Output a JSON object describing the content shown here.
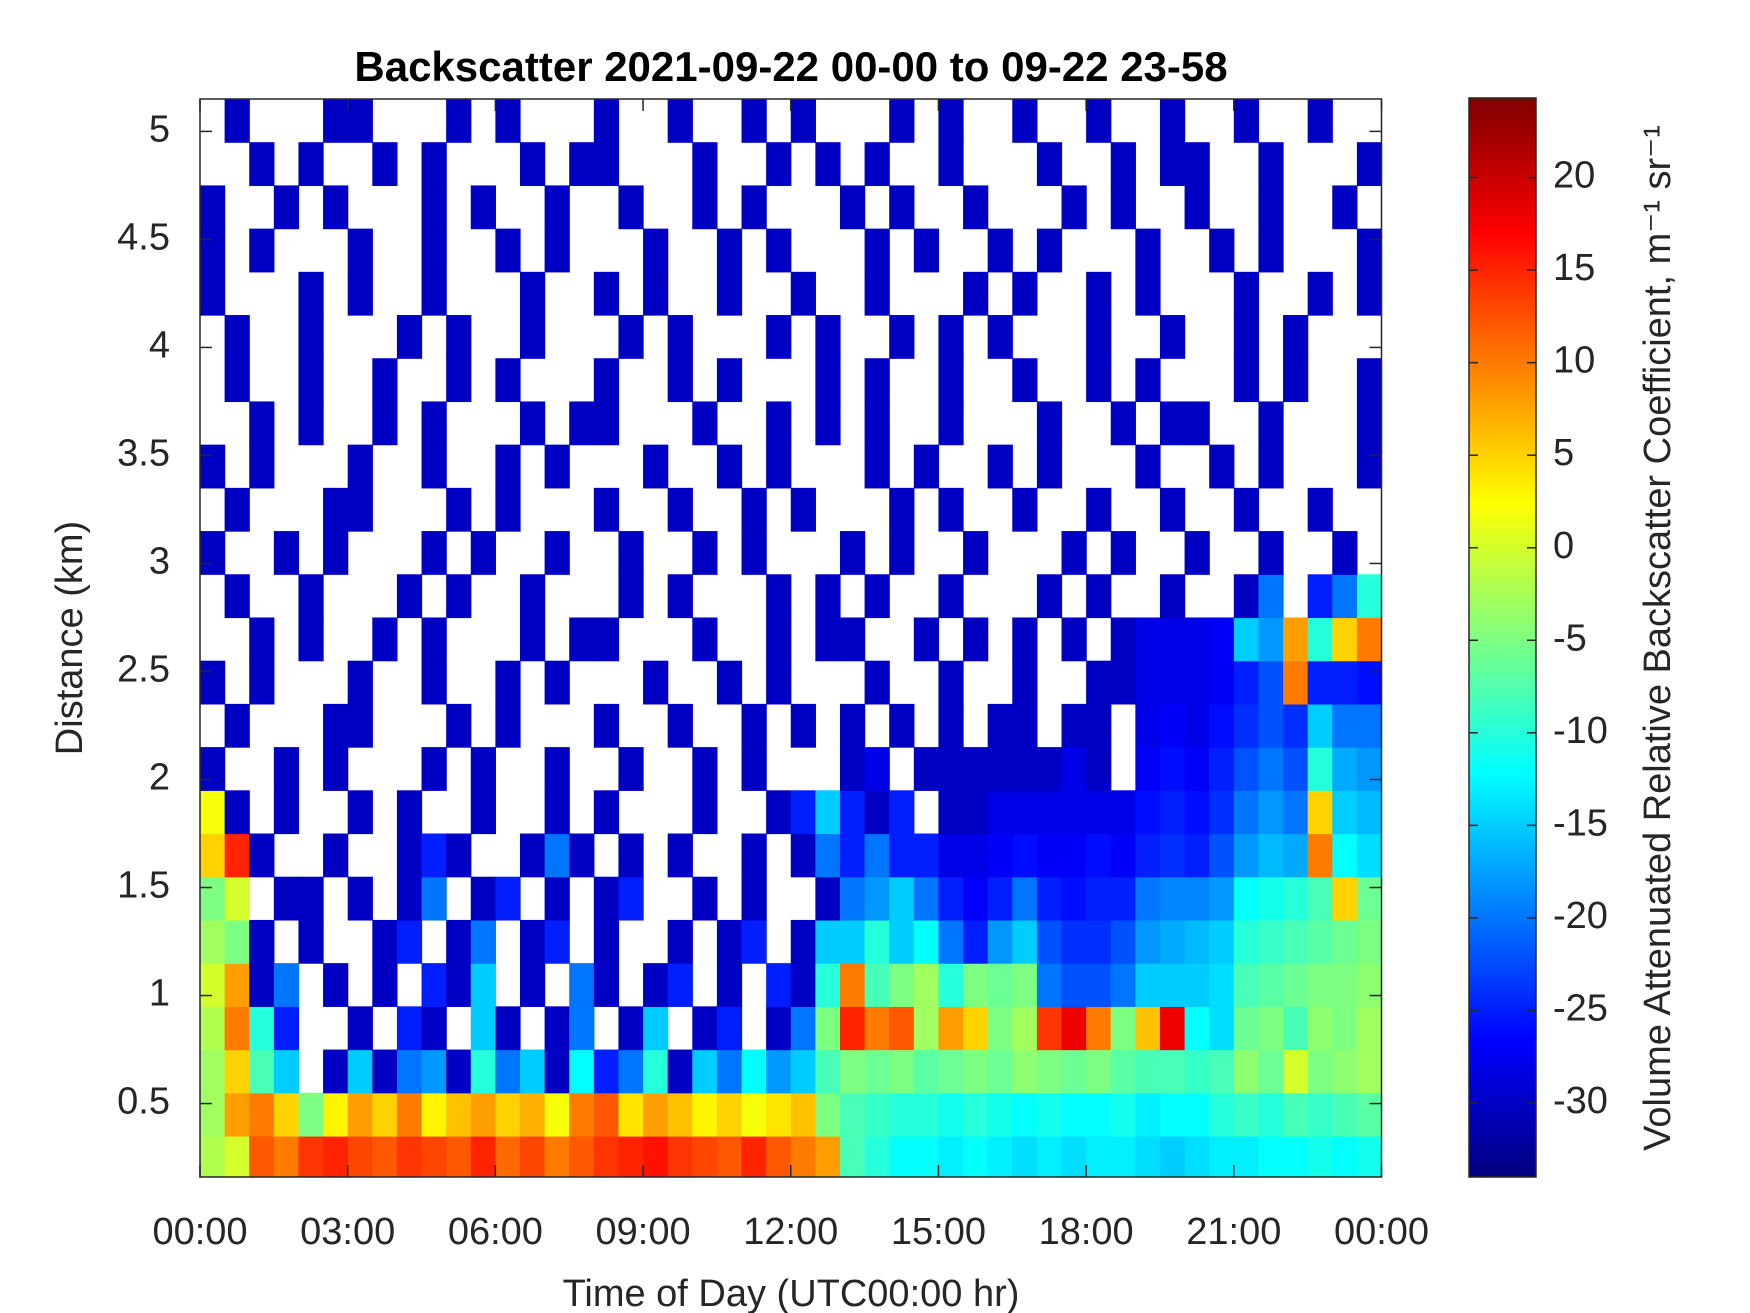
{
  "chart_data": {
    "type": "heatmap",
    "title": "Backscatter 2021-09-22 00-00 to 09-22 23-58",
    "xlabel": "Time of Day (UTC00:00 hr)",
    "ylabel": "Distance (km)",
    "colorbar_label": "Volume Attenuated Relative Backscatter Coefficient, m⁻¹ sr⁻¹",
    "colormap": "jet",
    "clim": [
      -34,
      24.3
    ],
    "cticks": [
      -30,
      -25,
      -20,
      -15,
      -10,
      -5,
      0,
      5,
      10,
      15,
      20
    ],
    "xlim": [
      0,
      24
    ],
    "xticks": [
      {
        "value": 0,
        "label": "00:00"
      },
      {
        "value": 3,
        "label": "03:00"
      },
      {
        "value": 6,
        "label": "06:00"
      },
      {
        "value": 9,
        "label": "09:00"
      },
      {
        "value": 12,
        "label": "12:00"
      },
      {
        "value": 15,
        "label": "15:00"
      },
      {
        "value": 18,
        "label": "18:00"
      },
      {
        "value": 21,
        "label": "21:00"
      },
      {
        "value": 24,
        "label": "00:00"
      }
    ],
    "ylim": [
      0.16,
      5.15
    ],
    "yticks": [
      0.5,
      1,
      1.5,
      2,
      2.5,
      3,
      3.5,
      4,
      4.5,
      5
    ],
    "x": [
      0.25,
      0.75,
      1.25,
      1.75,
      2.25,
      2.75,
      3.25,
      3.75,
      4.25,
      4.75,
      5.25,
      5.75,
      6.25,
      6.75,
      7.25,
      7.75,
      8.25,
      8.75,
      9.25,
      9.75,
      10.25,
      10.75,
      11.25,
      11.75,
      12.25,
      12.75,
      13.25,
      13.75,
      14.25,
      14.75,
      15.25,
      15.75,
      16.25,
      16.75,
      17.25,
      17.75,
      18.25,
      18.75,
      19.25,
      19.75,
      20.25,
      20.75,
      21.25,
      21.75,
      22.25,
      22.75,
      23.25,
      23.75
    ],
    "y": [
      0.25,
      0.45,
      0.65,
      0.85,
      1.05,
      1.25,
      1.45,
      1.65,
      1.85,
      2.05,
      2.25,
      2.45,
      2.65,
      2.85,
      3.05,
      3.25,
      3.45,
      3.65,
      3.85,
      4.05,
      4.25,
      4.45,
      4.65,
      4.85,
      5.05
    ],
    "z": [
      [
        -2,
        0,
        12,
        10,
        14,
        15,
        13,
        12,
        14,
        13,
        12,
        15,
        11,
        13,
        10,
        12,
        14,
        15,
        16,
        14,
        13,
        12,
        15,
        12,
        10,
        8,
        -8,
        -10,
        -12,
        -12,
        -13,
        -12,
        -13,
        -14,
        -13,
        -14,
        -13,
        -13,
        -14,
        -15,
        -14,
        -13,
        -13,
        -12,
        -12,
        -11,
        -12,
        -11
      ],
      [
        -3,
        8,
        10,
        5,
        -5,
        3,
        8,
        5,
        10,
        3,
        6,
        8,
        5,
        7,
        2,
        10,
        12,
        4,
        8,
        6,
        3,
        5,
        2,
        4,
        6,
        -5,
        -8,
        -9,
        -10,
        -10,
        -11,
        -10,
        -11,
        -12,
        -11,
        -12,
        -12,
        -11,
        -13,
        -12,
        -12,
        -10,
        -9,
        -10,
        -8,
        -9,
        -8,
        -7
      ],
      [
        -3,
        5,
        -8,
        -15,
        null,
        -30,
        -15,
        -30,
        -20,
        -18,
        -30,
        -10,
        -20,
        -15,
        -30,
        -12,
        -25,
        -20,
        -10,
        -30,
        -15,
        -20,
        -12,
        -18,
        -15,
        -8,
        -5,
        -6,
        -5,
        -7,
        -6,
        -5,
        -6,
        -4,
        -5,
        -6,
        -5,
        -7,
        -8,
        -8,
        -9,
        -8,
        -4,
        -6,
        0,
        -5,
        -4,
        -3
      ],
      [
        -2,
        10,
        -10,
        -25,
        null,
        null,
        -30,
        null,
        -25,
        -30,
        null,
        -15,
        -30,
        null,
        -30,
        -20,
        null,
        -30,
        -15,
        null,
        -30,
        -25,
        null,
        -30,
        -20,
        -5,
        15,
        10,
        12,
        -3,
        8,
        5,
        -5,
        -3,
        14,
        18,
        10,
        -5,
        6,
        18,
        -12,
        -14,
        -6,
        -5,
        -8,
        -4,
        -5,
        -3
      ],
      [
        0,
        8,
        -30,
        -20,
        null,
        -30,
        null,
        -30,
        null,
        -25,
        -30,
        -15,
        null,
        -30,
        null,
        -20,
        -30,
        null,
        -30,
        -25,
        null,
        -30,
        null,
        -25,
        -30,
        -10,
        10,
        -8,
        -5,
        -3,
        -10,
        -5,
        -6,
        -5,
        -20,
        -22,
        -22,
        -20,
        -15,
        -15,
        -15,
        -14,
        -8,
        -7,
        -6,
        -5,
        -5,
        -4
      ],
      [
        -3,
        -5,
        -30,
        null,
        -30,
        null,
        null,
        -30,
        -25,
        null,
        -30,
        -20,
        null,
        -30,
        -25,
        null,
        -30,
        null,
        null,
        -30,
        null,
        -30,
        -25,
        null,
        -30,
        -15,
        -15,
        -10,
        -15,
        -12,
        -20,
        -25,
        -18,
        -15,
        -22,
        -24,
        -24,
        -22,
        -18,
        -17,
        -16,
        -15,
        -10,
        -9,
        -8,
        -7,
        -6,
        -5
      ],
      [
        -5,
        0,
        null,
        -30,
        -30,
        null,
        -30,
        null,
        -30,
        -20,
        null,
        -30,
        -25,
        null,
        -30,
        null,
        -30,
        -25,
        null,
        null,
        -30,
        null,
        -30,
        null,
        null,
        -30,
        -20,
        -18,
        -15,
        -20,
        -25,
        -27,
        -25,
        -20,
        -25,
        -26,
        -25,
        -25,
        -20,
        -19,
        -19,
        -18,
        -12,
        -11,
        -10,
        -8,
        5,
        -6
      ],
      [
        5,
        15,
        -30,
        null,
        null,
        -30,
        null,
        null,
        -30,
        -25,
        -30,
        null,
        null,
        -30,
        -20,
        -30,
        null,
        -30,
        null,
        -30,
        null,
        null,
        -30,
        null,
        -30,
        -20,
        -25,
        -20,
        -25,
        -25,
        -28,
        -28,
        -27,
        -26,
        -27,
        -27,
        -26,
        -27,
        -25,
        -24,
        -25,
        -22,
        -18,
        -16,
        -17,
        10,
        -12,
        -14
      ],
      [
        2,
        -30,
        null,
        -30,
        null,
        null,
        -30,
        null,
        -30,
        null,
        null,
        -30,
        null,
        null,
        -30,
        null,
        -30,
        null,
        null,
        null,
        -30,
        null,
        null,
        -30,
        -25,
        -15,
        -25,
        -30,
        -25,
        null,
        -30,
        -30,
        -28,
        -28,
        -28,
        -28,
        -28,
        -28,
        -26,
        -25,
        -26,
        -24,
        -20,
        -18,
        -20,
        5,
        -15,
        -16
      ],
      [
        -30,
        null,
        null,
        -30,
        null,
        -30,
        null,
        null,
        null,
        -30,
        null,
        -30,
        null,
        null,
        -30,
        null,
        null,
        -30,
        null,
        null,
        -30,
        null,
        -30,
        null,
        null,
        null,
        -30,
        -28,
        null,
        -30,
        -30,
        -30,
        -30,
        -30,
        -30,
        -28,
        -30,
        null,
        -27,
        -26,
        -27,
        -25,
        -22,
        -20,
        -22,
        -10,
        -17,
        -18
      ],
      [
        null,
        -30,
        null,
        null,
        null,
        -30,
        -30,
        null,
        null,
        null,
        -30,
        null,
        -30,
        null,
        null,
        null,
        -30,
        null,
        null,
        -30,
        null,
        null,
        -30,
        null,
        -30,
        null,
        -30,
        null,
        -30,
        null,
        -30,
        null,
        -30,
        -30,
        null,
        -30,
        -30,
        null,
        -28,
        -27,
        -28,
        -26,
        -24,
        -22,
        -24,
        -15,
        -20,
        -20
      ],
      [
        -30,
        null,
        -30,
        null,
        null,
        null,
        -30,
        null,
        null,
        -30,
        null,
        null,
        -30,
        null,
        -30,
        null,
        null,
        null,
        -30,
        null,
        null,
        -30,
        null,
        -30,
        null,
        null,
        null,
        -30,
        null,
        null,
        -30,
        null,
        null,
        -30,
        null,
        null,
        -30,
        -30,
        -28,
        -28,
        -28,
        -27,
        -25,
        -22,
        10,
        -25,
        -25,
        -26
      ],
      [
        null,
        null,
        -30,
        null,
        -30,
        null,
        null,
        -30,
        null,
        -30,
        null,
        null,
        null,
        -30,
        null,
        -30,
        -30,
        null,
        null,
        null,
        -30,
        null,
        null,
        -30,
        null,
        -30,
        -30,
        null,
        null,
        -30,
        null,
        -30,
        null,
        -30,
        null,
        -30,
        null,
        -30,
        -28,
        -28,
        -28,
        -27,
        -15,
        -18,
        8,
        -10,
        5,
        10
      ],
      [
        null,
        -30,
        null,
        null,
        -30,
        null,
        null,
        null,
        -30,
        null,
        -30,
        null,
        null,
        -30,
        null,
        null,
        null,
        -30,
        null,
        -30,
        null,
        null,
        null,
        -30,
        null,
        -30,
        null,
        -30,
        null,
        null,
        -30,
        null,
        null,
        null,
        -30,
        null,
        -30,
        null,
        null,
        -30,
        null,
        null,
        -30,
        -20,
        null,
        -25,
        -20,
        -10
      ],
      [
        -30,
        null,
        null,
        -30,
        null,
        -30,
        null,
        null,
        null,
        -30,
        null,
        -30,
        null,
        null,
        -30,
        null,
        null,
        -30,
        null,
        null,
        -30,
        null,
        -30,
        null,
        null,
        null,
        -30,
        null,
        -30,
        null,
        null,
        -30,
        null,
        null,
        null,
        -30,
        null,
        -30,
        null,
        null,
        -30,
        null,
        null,
        -30,
        null,
        null,
        -30,
        null
      ],
      [
        null,
        -30,
        null,
        null,
        null,
        -30,
        -30,
        null,
        null,
        null,
        -30,
        null,
        -30,
        null,
        null,
        null,
        -30,
        null,
        null,
        -30,
        null,
        null,
        -30,
        null,
        -30,
        null,
        null,
        null,
        -30,
        null,
        -30,
        null,
        null,
        -30,
        null,
        null,
        -30,
        null,
        null,
        -30,
        null,
        null,
        -30,
        null,
        null,
        -30,
        null,
        null
      ],
      [
        -30,
        null,
        -30,
        null,
        null,
        null,
        -30,
        null,
        null,
        -30,
        null,
        null,
        -30,
        null,
        -30,
        null,
        null,
        null,
        -30,
        null,
        null,
        -30,
        null,
        -30,
        null,
        null,
        null,
        -30,
        null,
        -30,
        null,
        null,
        -30,
        null,
        -30,
        null,
        null,
        null,
        -30,
        null,
        null,
        -30,
        null,
        -30,
        null,
        null,
        null,
        -30
      ],
      [
        null,
        null,
        -30,
        null,
        -30,
        null,
        null,
        -30,
        null,
        -30,
        null,
        null,
        null,
        -30,
        null,
        -30,
        -30,
        null,
        null,
        null,
        -30,
        null,
        null,
        -30,
        null,
        -30,
        null,
        -30,
        null,
        null,
        -30,
        null,
        null,
        null,
        -30,
        null,
        null,
        -30,
        null,
        -30,
        -30,
        null,
        null,
        -30,
        null,
        null,
        null,
        -30
      ],
      [
        null,
        -30,
        null,
        null,
        -30,
        null,
        null,
        -30,
        null,
        null,
        -30,
        null,
        -30,
        null,
        null,
        null,
        -30,
        null,
        null,
        -30,
        null,
        -30,
        null,
        null,
        null,
        -30,
        null,
        -30,
        null,
        null,
        -30,
        null,
        null,
        -30,
        null,
        null,
        -30,
        null,
        -30,
        null,
        null,
        null,
        -30,
        null,
        -30,
        null,
        null,
        -30
      ],
      [
        null,
        -30,
        null,
        null,
        -30,
        null,
        null,
        null,
        -30,
        null,
        -30,
        null,
        null,
        -30,
        null,
        null,
        null,
        -30,
        null,
        -30,
        null,
        null,
        null,
        -30,
        null,
        -30,
        null,
        null,
        -30,
        null,
        -30,
        null,
        -30,
        null,
        null,
        null,
        -30,
        null,
        null,
        -30,
        null,
        null,
        -30,
        null,
        -30,
        null,
        null,
        null
      ],
      [
        -30,
        null,
        null,
        null,
        -30,
        null,
        -30,
        null,
        null,
        -30,
        null,
        null,
        null,
        -30,
        null,
        null,
        -30,
        null,
        -30,
        null,
        null,
        -30,
        null,
        null,
        -30,
        null,
        null,
        -30,
        null,
        null,
        null,
        -30,
        null,
        -30,
        null,
        null,
        -30,
        null,
        -30,
        null,
        null,
        null,
        -30,
        null,
        null,
        -30,
        null,
        -30
      ],
      [
        -30,
        null,
        -30,
        null,
        null,
        null,
        -30,
        null,
        null,
        -30,
        null,
        null,
        -30,
        null,
        -30,
        null,
        null,
        null,
        -30,
        null,
        null,
        -30,
        null,
        -30,
        null,
        null,
        null,
        -30,
        null,
        -30,
        null,
        null,
        -30,
        null,
        -30,
        null,
        null,
        null,
        -30,
        null,
        null,
        -30,
        null,
        -30,
        null,
        null,
        null,
        -30
      ],
      [
        -30,
        null,
        null,
        -30,
        null,
        -30,
        null,
        null,
        null,
        -30,
        null,
        -30,
        null,
        null,
        -30,
        null,
        null,
        -30,
        null,
        null,
        -30,
        null,
        -30,
        null,
        null,
        null,
        -30,
        null,
        -30,
        null,
        null,
        -30,
        null,
        null,
        null,
        -30,
        null,
        -30,
        null,
        null,
        -30,
        null,
        null,
        -30,
        null,
        null,
        -30,
        null
      ],
      [
        null,
        null,
        -30,
        null,
        -30,
        null,
        null,
        -30,
        null,
        -30,
        null,
        null,
        null,
        -30,
        null,
        -30,
        -30,
        null,
        null,
        null,
        -30,
        null,
        null,
        -30,
        null,
        -30,
        null,
        -30,
        null,
        null,
        -30,
        null,
        null,
        null,
        -30,
        null,
        null,
        -30,
        null,
        -30,
        -30,
        null,
        null,
        -30,
        null,
        null,
        null,
        -30
      ],
      [
        null,
        -30,
        null,
        null,
        null,
        -30,
        -30,
        null,
        null,
        null,
        -30,
        null,
        -30,
        null,
        null,
        null,
        -30,
        null,
        null,
        -30,
        null,
        null,
        -30,
        null,
        -30,
        null,
        null,
        null,
        -30,
        null,
        -30,
        null,
        null,
        -30,
        null,
        null,
        -30,
        null,
        null,
        -30,
        null,
        null,
        -30,
        null,
        null,
        -30,
        null,
        null
      ]
    ]
  }
}
